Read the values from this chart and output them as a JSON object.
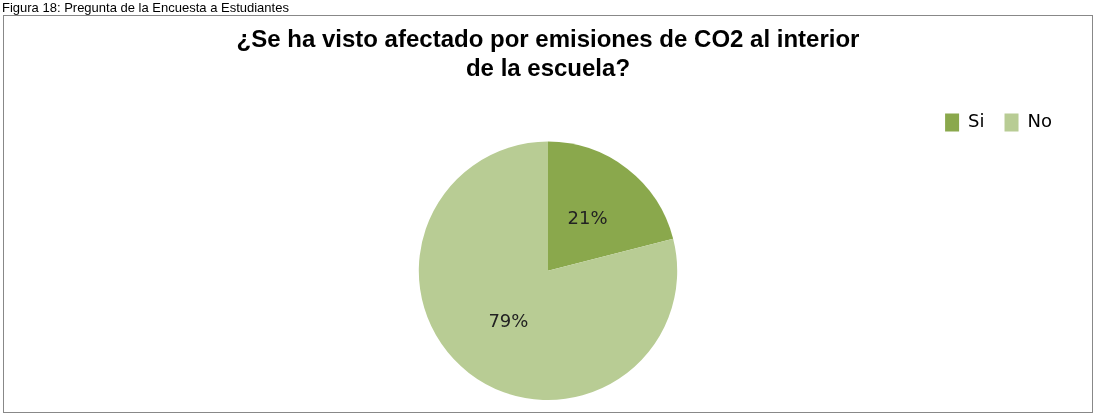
{
  "chart_data": {
    "type": "pie",
    "title": "¿Se ha visto afectado por emisiones de CO2 al interior de la escuela?",
    "annotations": [
      "Figura 18: Pregunta de la Encuesta a Estudiantes"
    ],
    "categories": [
      "Si",
      "No"
    ],
    "values": [
      21,
      79
    ],
    "colors": [
      "#8aa84c",
      "#b8cc94"
    ],
    "value_labels": [
      "21%",
      "79%"
    ],
    "legend": "top right"
  }
}
